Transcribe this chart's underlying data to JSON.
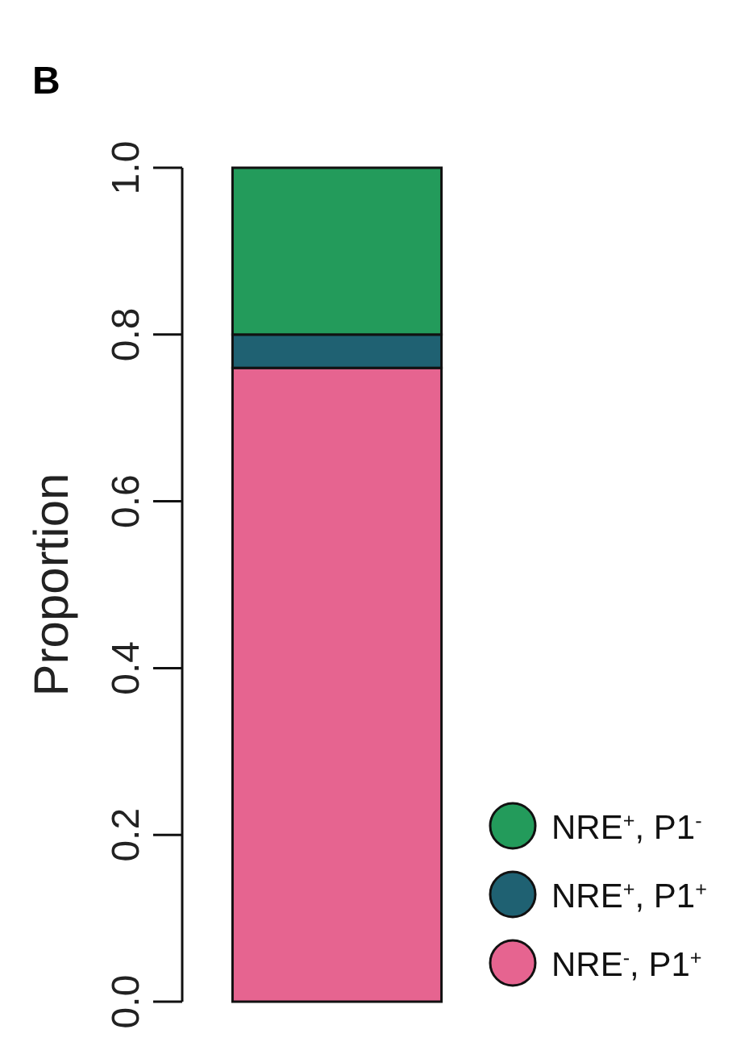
{
  "chart_data": {
    "type": "bar",
    "title": "B",
    "ylabel": "Proportion",
    "categories": [
      null
    ],
    "stacked": true,
    "series": [
      {
        "name": "NRE$^{-}$, P1$^{+}$",
        "color": "#e66490",
        "values": [
          0.76
        ]
      },
      {
        "name": "NRE$^{+}$, P1$^{+}$",
        "color": "#1f6172",
        "values": [
          0.04
        ]
      },
      {
        "name": "NRE$^{+}$, P1$^{-}$",
        "color": "#239b5b",
        "values": [
          0.2
        ]
      }
    ],
    "ylim": [
      0,
      1
    ],
    "yticks": [
      {
        "value": 0,
        "label": "0.0"
      },
      {
        "value": 0.2,
        "label": "0.2"
      },
      {
        "value": 0.4,
        "label": "0.4"
      },
      {
        "value": 0.6,
        "label": "0.6"
      },
      {
        "value": 0.8,
        "label": "0.8"
      },
      {
        "value": 1,
        "label": "1.0"
      }
    ],
    "legend": "bottom right",
    "grid": false
  }
}
